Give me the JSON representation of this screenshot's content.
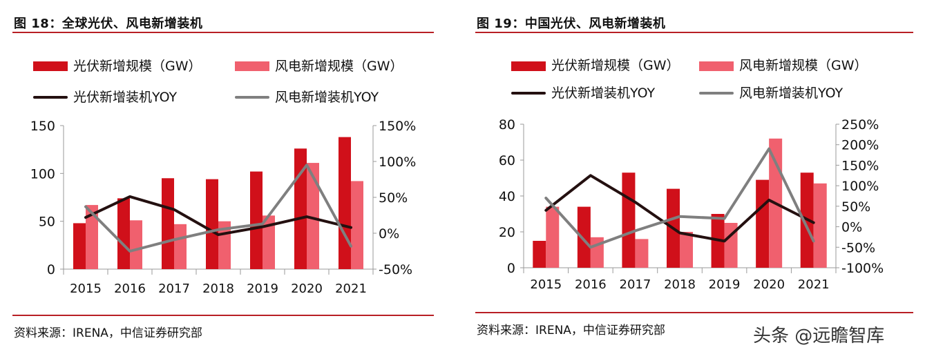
{
  "colors": {
    "solar_bar": "#d0101a",
    "wind_bar": "#f0606e",
    "solar_line": "#241010",
    "wind_line": "#7f7f7f",
    "rule": "#b81f24"
  },
  "legend": {
    "solar_bar": "光伏新增规模（GW）",
    "wind_bar": "风电新增规模（GW）",
    "solar_line": "光伏新增装机YOY",
    "wind_line": "风电新增装机YOY"
  },
  "watermark": "头条 @远瞻智库",
  "chart_data": [
    {
      "type": "bar",
      "title": "图 18：全球光伏、风电新增装机",
      "source": "资料来源：IRENA，中信证券研究部",
      "categories": [
        "2015",
        "2016",
        "2017",
        "2018",
        "2019",
        "2020",
        "2021"
      ],
      "y_left": {
        "min": 0,
        "max": 150,
        "ticks": [
          0,
          50,
          100,
          150
        ],
        "tick_labels": [
          "0",
          "50",
          "100",
          "150"
        ]
      },
      "y_right": {
        "min": -50,
        "max": 150,
        "ticks": [
          -50,
          0,
          50,
          100,
          150
        ],
        "tick_labels": [
          "-50%",
          "0%",
          "50%",
          "100%",
          "150%"
        ]
      },
      "series": [
        {
          "name": "光伏新增规模（GW）",
          "kind": "bar",
          "axis": "left",
          "values": [
            48,
            74,
            95,
            94,
            102,
            126,
            138
          ]
        },
        {
          "name": "风电新增规模（GW）",
          "kind": "bar",
          "axis": "left",
          "values": [
            67,
            51,
            47,
            50,
            56,
            111,
            92
          ]
        },
        {
          "name": "光伏新增装机YOY",
          "kind": "line",
          "axis": "right",
          "values": [
            22,
            51,
            33,
            -2,
            9,
            23,
            8
          ]
        },
        {
          "name": "风电新增装机YOY",
          "kind": "line",
          "axis": "right",
          "values": [
            37,
            -25,
            -9,
            5,
            13,
            95,
            -18
          ]
        }
      ]
    },
    {
      "type": "bar",
      "title": "图 19：中国光伏、风电新增装机",
      "source": "资料来源：IRENA，中信证券研究部",
      "categories": [
        "2015",
        "2016",
        "2017",
        "2018",
        "2019",
        "2020",
        "2021"
      ],
      "y_left": {
        "min": 0,
        "max": 80,
        "ticks": [
          0,
          20,
          40,
          60,
          80
        ],
        "tick_labels": [
          "0",
          "20",
          "40",
          "60",
          "80"
        ]
      },
      "y_right": {
        "min": -100,
        "max": 250,
        "ticks": [
          -100,
          -50,
          0,
          50,
          100,
          150,
          200,
          250
        ],
        "tick_labels": [
          "-100%",
          "-50%",
          "0%",
          "50%",
          "100%",
          "150%",
          "200%",
          "250%"
        ]
      },
      "series": [
        {
          "name": "光伏新增规模（GW）",
          "kind": "bar",
          "axis": "left",
          "values": [
            15,
            34,
            53,
            44,
            30,
            49,
            53
          ]
        },
        {
          "name": "风电新增规模（GW）",
          "kind": "bar",
          "axis": "left",
          "values": [
            34,
            17,
            16,
            20,
            25,
            72,
            47
          ]
        },
        {
          "name": "光伏新增装机YOY",
          "kind": "line",
          "axis": "right",
          "values": [
            40,
            125,
            60,
            -15,
            -35,
            65,
            10
          ]
        },
        {
          "name": "风电新增装机YOY",
          "kind": "line",
          "axis": "right",
          "values": [
            70,
            -50,
            -10,
            25,
            20,
            190,
            -35
          ]
        }
      ]
    }
  ]
}
